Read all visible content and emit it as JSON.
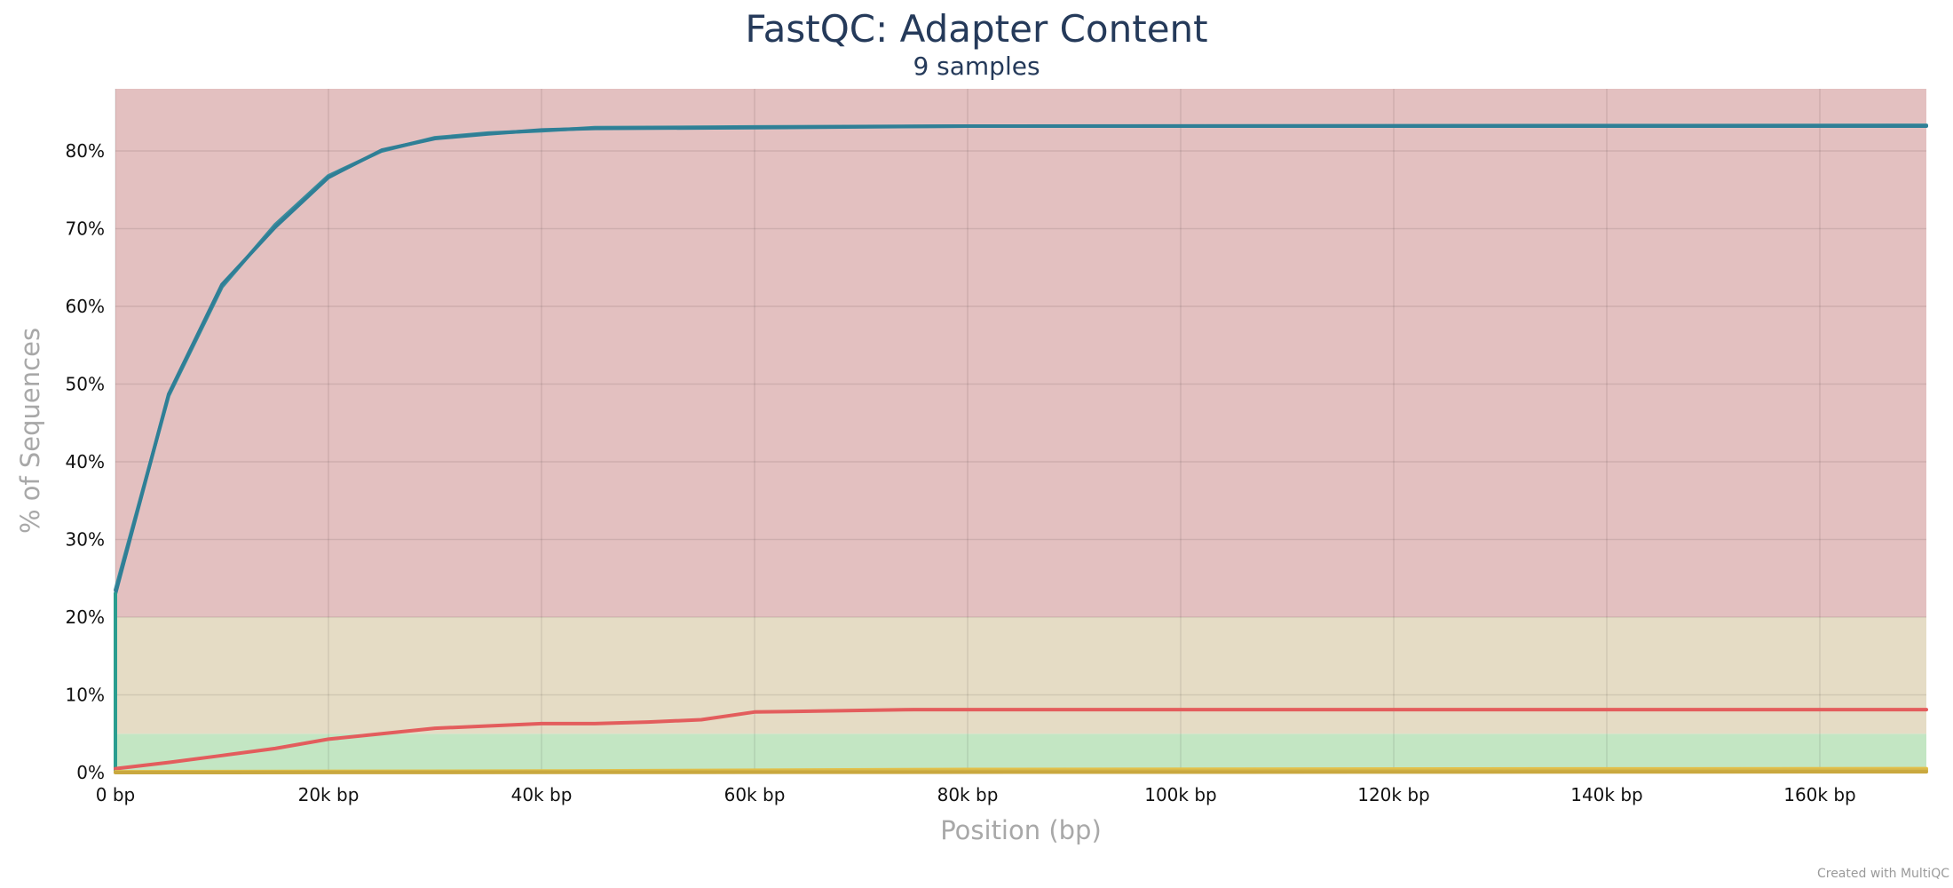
{
  "chart_data": {
    "type": "line",
    "title": "FastQC: Adapter Content",
    "subtitle": "9 samples",
    "xlabel": "Position (bp)",
    "ylabel": "% of Sequences",
    "xlim": [
      0,
      170000
    ],
    "ylim": [
      0,
      88
    ],
    "x_ticks": [
      0,
      20000,
      40000,
      60000,
      80000,
      100000,
      120000,
      140000,
      160000
    ],
    "x_tick_labels": [
      "0 bp",
      "20k bp",
      "40k bp",
      "60k bp",
      "80k bp",
      "100k bp",
      "120k bp",
      "140k bp",
      "160k bp"
    ],
    "y_ticks": [
      0,
      10,
      20,
      30,
      40,
      50,
      60,
      70,
      80
    ],
    "y_tick_labels": [
      "0%",
      "10%",
      "20%",
      "30%",
      "40%",
      "50%",
      "60%",
      "70%",
      "80%"
    ],
    "grid": true,
    "bands": [
      {
        "from": 0,
        "to": 5,
        "color": "#c3e6c3"
      },
      {
        "from": 5,
        "to": 20,
        "color": "#e5dcc5"
      },
      {
        "from": 20,
        "to": 88,
        "color": "#e3c0c0"
      }
    ],
    "series": [
      {
        "color": "#3b8d9e",
        "points": [
          [
            0,
            23.5
          ],
          [
            5000,
            48.5
          ],
          [
            10000,
            62.5
          ],
          [
            15000,
            70.5
          ],
          [
            20000,
            76.8
          ],
          [
            25000,
            80.0
          ],
          [
            30000,
            81.7
          ],
          [
            35000,
            82.3
          ],
          [
            40000,
            82.6
          ],
          [
            45000,
            83.0
          ],
          [
            60000,
            83.1
          ],
          [
            80000,
            83.2
          ],
          [
            170000,
            83.3
          ]
        ]
      },
      {
        "color": "#2f7f96",
        "points": [
          [
            0,
            23.0
          ],
          [
            5000,
            48.7
          ],
          [
            10000,
            62.8
          ],
          [
            15000,
            70.2
          ],
          [
            20000,
            76.6
          ],
          [
            25000,
            80.1
          ],
          [
            30000,
            81.6
          ],
          [
            35000,
            82.2
          ],
          [
            40000,
            82.7
          ],
          [
            45000,
            82.9
          ],
          [
            60000,
            83.0
          ],
          [
            80000,
            83.2
          ],
          [
            170000,
            83.2
          ]
        ]
      },
      {
        "color": "#2a9d8f",
        "points": [
          [
            0,
            0.1
          ],
          [
            0,
            23.0
          ]
        ]
      },
      {
        "color": "#e35d5d",
        "points": [
          [
            0,
            0.5
          ],
          [
            5000,
            1.3
          ],
          [
            10000,
            2.2
          ],
          [
            15000,
            3.1
          ],
          [
            20000,
            4.3
          ],
          [
            25000,
            5.0
          ],
          [
            30000,
            5.7
          ],
          [
            35000,
            6.0
          ],
          [
            40000,
            6.3
          ],
          [
            45000,
            6.3
          ],
          [
            50000,
            6.5
          ],
          [
            55000,
            6.8
          ],
          [
            60000,
            7.8
          ],
          [
            75000,
            8.1
          ],
          [
            170000,
            8.1
          ]
        ]
      },
      {
        "color": "#e3c04a",
        "points": [
          [
            0,
            0.1
          ],
          [
            40000,
            0.2
          ],
          [
            80000,
            0.4
          ],
          [
            170000,
            0.5
          ]
        ]
      },
      {
        "color": "#d6b84a",
        "points": [
          [
            0,
            0.05
          ],
          [
            60000,
            0.15
          ],
          [
            170000,
            0.3
          ]
        ]
      },
      {
        "color": "#c9a83f",
        "points": [
          [
            0,
            0.0
          ],
          [
            170000,
            0.1
          ]
        ]
      }
    ],
    "credit": "Created with MultiQC"
  }
}
